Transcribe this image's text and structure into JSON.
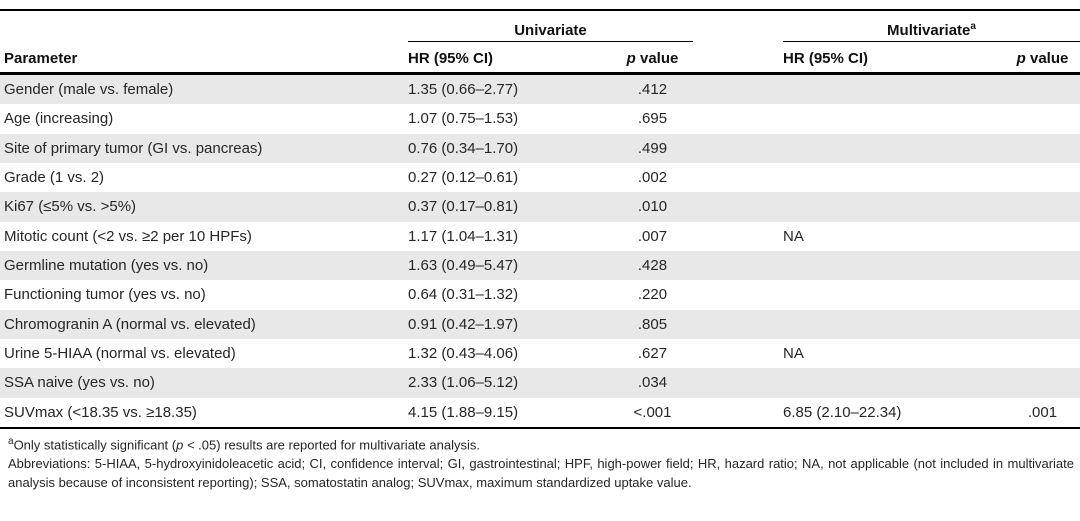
{
  "colors": {
    "stripe": "#e8e8e8",
    "rule": "#000000",
    "text": "#262626"
  },
  "table": {
    "groups": [
      {
        "label": "Univariate",
        "sup": ""
      },
      {
        "label": "Multivariate",
        "sup": "a"
      }
    ],
    "col_headers": {
      "parameter": "Parameter",
      "hr": "HR (95% CI)",
      "p_italic": "p",
      "p_rest": " value"
    },
    "rows": [
      {
        "parameter": "Gender (male vs. female)",
        "uni_hr": "1.35 (0.66–2.77)",
        "uni_p": ".412"
      },
      {
        "parameter": "Age (increasing)",
        "uni_hr": "1.07 (0.75–1.53)",
        "uni_p": ".695"
      },
      {
        "parameter": "Site of primary tumor (GI vs. pancreas)",
        "uni_hr": "0.76 (0.34–1.70)",
        "uni_p": ".499"
      },
      {
        "parameter": "Grade (1 vs. 2)",
        "uni_hr": "0.27 (0.12–0.61)",
        "uni_p": ".002"
      },
      {
        "parameter": "Ki67 (≤5% vs. >5%)",
        "uni_hr": "0.37 (0.17–0.81)",
        "uni_p": ".010"
      },
      {
        "parameter": "Mitotic count (<2 vs. ≥2 per 10 HPFs)",
        "uni_hr": "1.17 (1.04–1.31)",
        "uni_p": ".007",
        "multi_hr": "NA"
      },
      {
        "parameter": "Germline mutation (yes vs. no)",
        "uni_hr": "1.63 (0.49–5.47)",
        "uni_p": ".428"
      },
      {
        "parameter": "Functioning tumor (yes vs. no)",
        "uni_hr": "0.64 (0.31–1.32)",
        "uni_p": ".220"
      },
      {
        "parameter": "Chromogranin A (normal vs. elevated)",
        "uni_hr": "0.91 (0.42–1.97)",
        "uni_p": ".805"
      },
      {
        "parameter": "Urine 5-HIAA (normal vs. elevated)",
        "uni_hr": "1.32 (0.43–4.06)",
        "uni_p": ".627",
        "multi_hr": "NA"
      },
      {
        "parameter": "SSA naive (yes vs. no)",
        "uni_hr": "2.33 (1.06–5.12)",
        "uni_p": ".034"
      },
      {
        "parameter": "SUVmax (<18.35 vs. ≥18.35)",
        "uni_hr": "4.15 (1.88–9.15)",
        "uni_p": "<.001",
        "multi_hr": "6.85 (2.10–22.34)",
        "multi_p": ".001"
      }
    ]
  },
  "footnotes": {
    "sup": "a",
    "note1_pre": "Only statistically significant (",
    "note1_p": "p",
    "note1_post": " < .05) results are reported for multivariate analysis.",
    "abbreviations": "Abbreviations: 5-HIAA, 5-hydroxyinidoleacetic acid; CI, confidence interval; GI, gastrointestinal; HPF, high-power field; HR, hazard ratio; NA, not applicable (not included in multivariate analysis because of inconsistent reporting); SSA, somatostatin analog; SUVmax, maximum standardized uptake value."
  }
}
